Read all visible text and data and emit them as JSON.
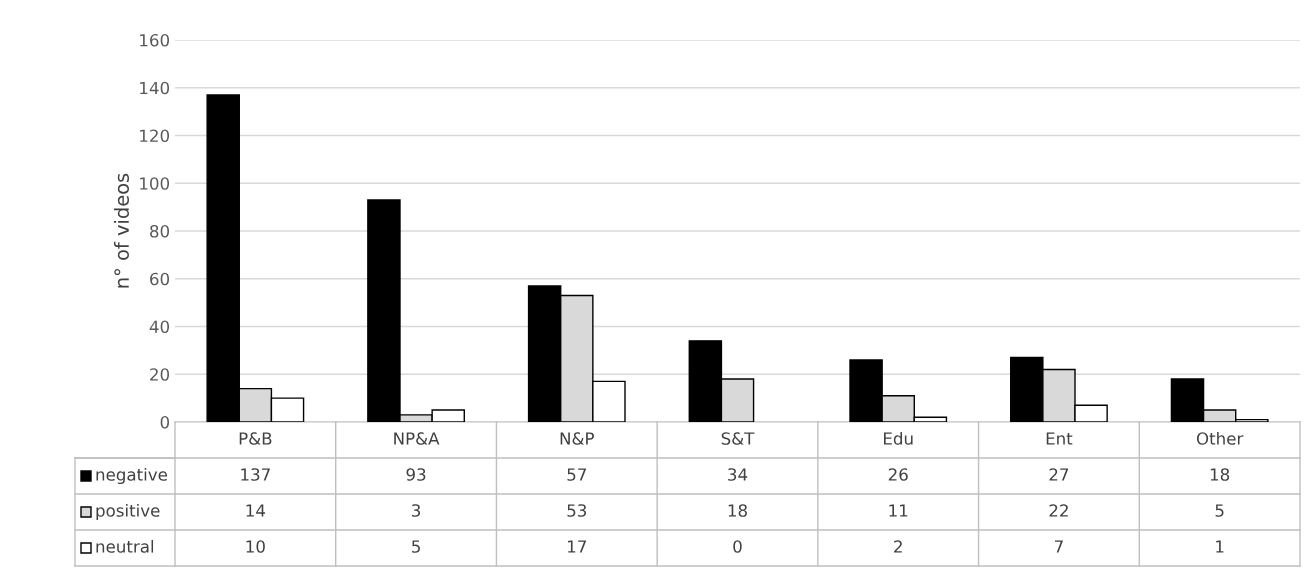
{
  "chart_data": {
    "type": "bar",
    "ylabel": "n° of videos",
    "categories": [
      "P&B",
      "NP&A",
      "N&P",
      "S&T",
      "Edu",
      "Ent",
      "Other"
    ],
    "series": [
      {
        "name": "negative",
        "color": "#000000",
        "values": [
          137,
          93,
          57,
          34,
          26,
          27,
          18
        ]
      },
      {
        "name": "positive",
        "color": "#d9d9d9",
        "values": [
          14,
          3,
          53,
          18,
          11,
          22,
          5
        ]
      },
      {
        "name": "neutral",
        "color": "#ffffff",
        "values": [
          10,
          5,
          17,
          0,
          2,
          7,
          1
        ]
      }
    ],
    "ylim": [
      0,
      160
    ],
    "yticks": [
      0,
      20,
      40,
      60,
      80,
      100,
      120,
      140,
      160
    ],
    "grid": "y",
    "data_labels": true,
    "legend": "bottom"
  }
}
